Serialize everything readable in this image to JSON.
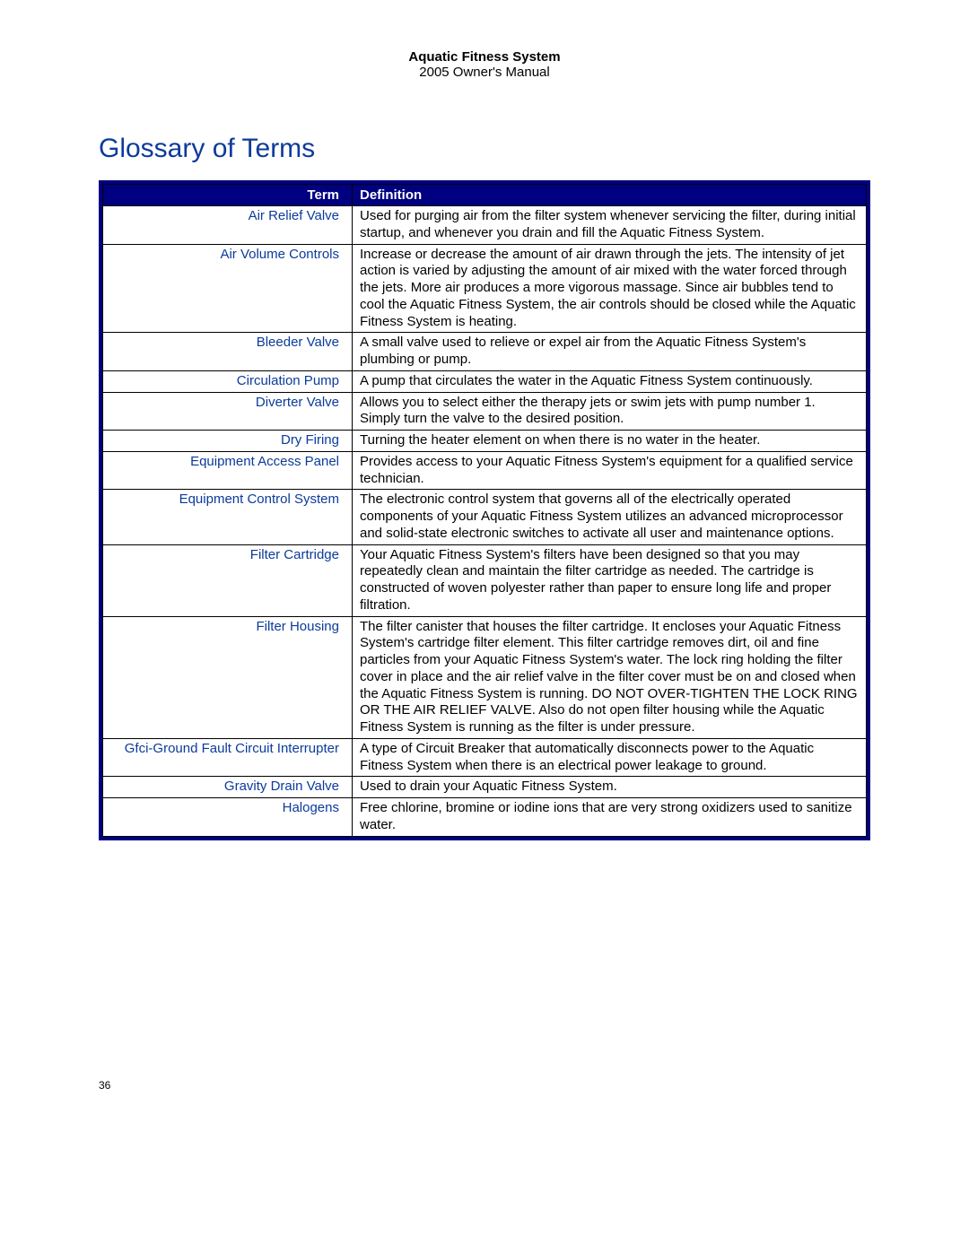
{
  "header": {
    "title": "Aquatic Fitness System",
    "subtitle": "2005 Owner's Manual"
  },
  "section_title": "Glossary of Terms",
  "columns": {
    "term": "Term",
    "definition": "Definition"
  },
  "colors": {
    "header_bg": "#000080",
    "header_text": "#ffffff",
    "term_text": "#0b3b9a",
    "body_text": "#000000",
    "border": "#000000"
  },
  "rows": [
    {
      "term": "Air Relief Valve",
      "definition": "Used for purging air from the filter system whenever servicing the filter, during initial startup, and whenever you drain and fill the Aquatic Fitness System."
    },
    {
      "term": "Air Volume Controls",
      "definition": "Increase or decrease the amount of air drawn through the jets.  The intensity of jet action is varied by adjusting the amount of air mixed with the water forced through the jets. More air produces a more vigorous massage.  Since air bubbles tend to cool the Aquatic Fitness System, the air controls should be closed while the Aquatic Fitness System is heating."
    },
    {
      "term": "Bleeder Valve",
      "definition": "A small valve used to relieve or expel air from the Aquatic Fitness System's plumbing or pump."
    },
    {
      "term": "Circulation Pump",
      "definition": "A pump that circulates the water in the Aquatic Fitness System continuously."
    },
    {
      "term": "Diverter Valve",
      "definition": "Allows you to select either the therapy jets or swim jets with pump number 1. Simply turn the valve to the desired position."
    },
    {
      "term": "Dry Firing",
      "definition": "Turning the heater element on when there is no water in the heater."
    },
    {
      "term": "Equipment Access Panel",
      "definition": "Provides access to your Aquatic Fitness System's equipment for a qualified service technician."
    },
    {
      "term": "Equipment Control System",
      "definition": "The electronic control system that governs all of the electrically operated components of your Aquatic Fitness System utilizes an advanced microprocessor and solid-state electronic switches to activate all user and maintenance options."
    },
    {
      "term": "Filter Cartridge",
      "definition": "Your Aquatic Fitness System's filters have been designed so that you may repeatedly clean and maintain the filter cartridge as needed.  The cartridge is constructed of woven polyester rather than paper to ensure long life and proper filtration."
    },
    {
      "term": "Filter Housing",
      "definition": "The filter canister that houses the filter cartridge. It encloses your Aquatic Fitness System's cartridge filter element.  This filter cartridge removes dirt, oil and fine particles from your Aquatic Fitness System's water.  The lock ring holding the filter cover in place and the air relief valve in the filter cover must be on and closed when the Aquatic Fitness System is running. DO NOT OVER-TIGHTEN THE LOCK RING OR THE AIR RELIEF VALVE. Also do not open filter housing while the Aquatic Fitness System is running as the filter is under pressure."
    },
    {
      "term": "Gfci-Ground Fault Circuit Interrupter",
      "definition": "A type of Circuit Breaker that automatically disconnects power to the Aquatic Fitness System when there is an electrical power leakage to ground."
    },
    {
      "term": "Gravity Drain Valve",
      "definition": "Used to drain your Aquatic Fitness System."
    },
    {
      "term": "Halogens",
      "definition": "Free chlorine, bromine or iodine ions that are very strong oxidizers used to sanitize water."
    }
  ],
  "page_number": "36"
}
